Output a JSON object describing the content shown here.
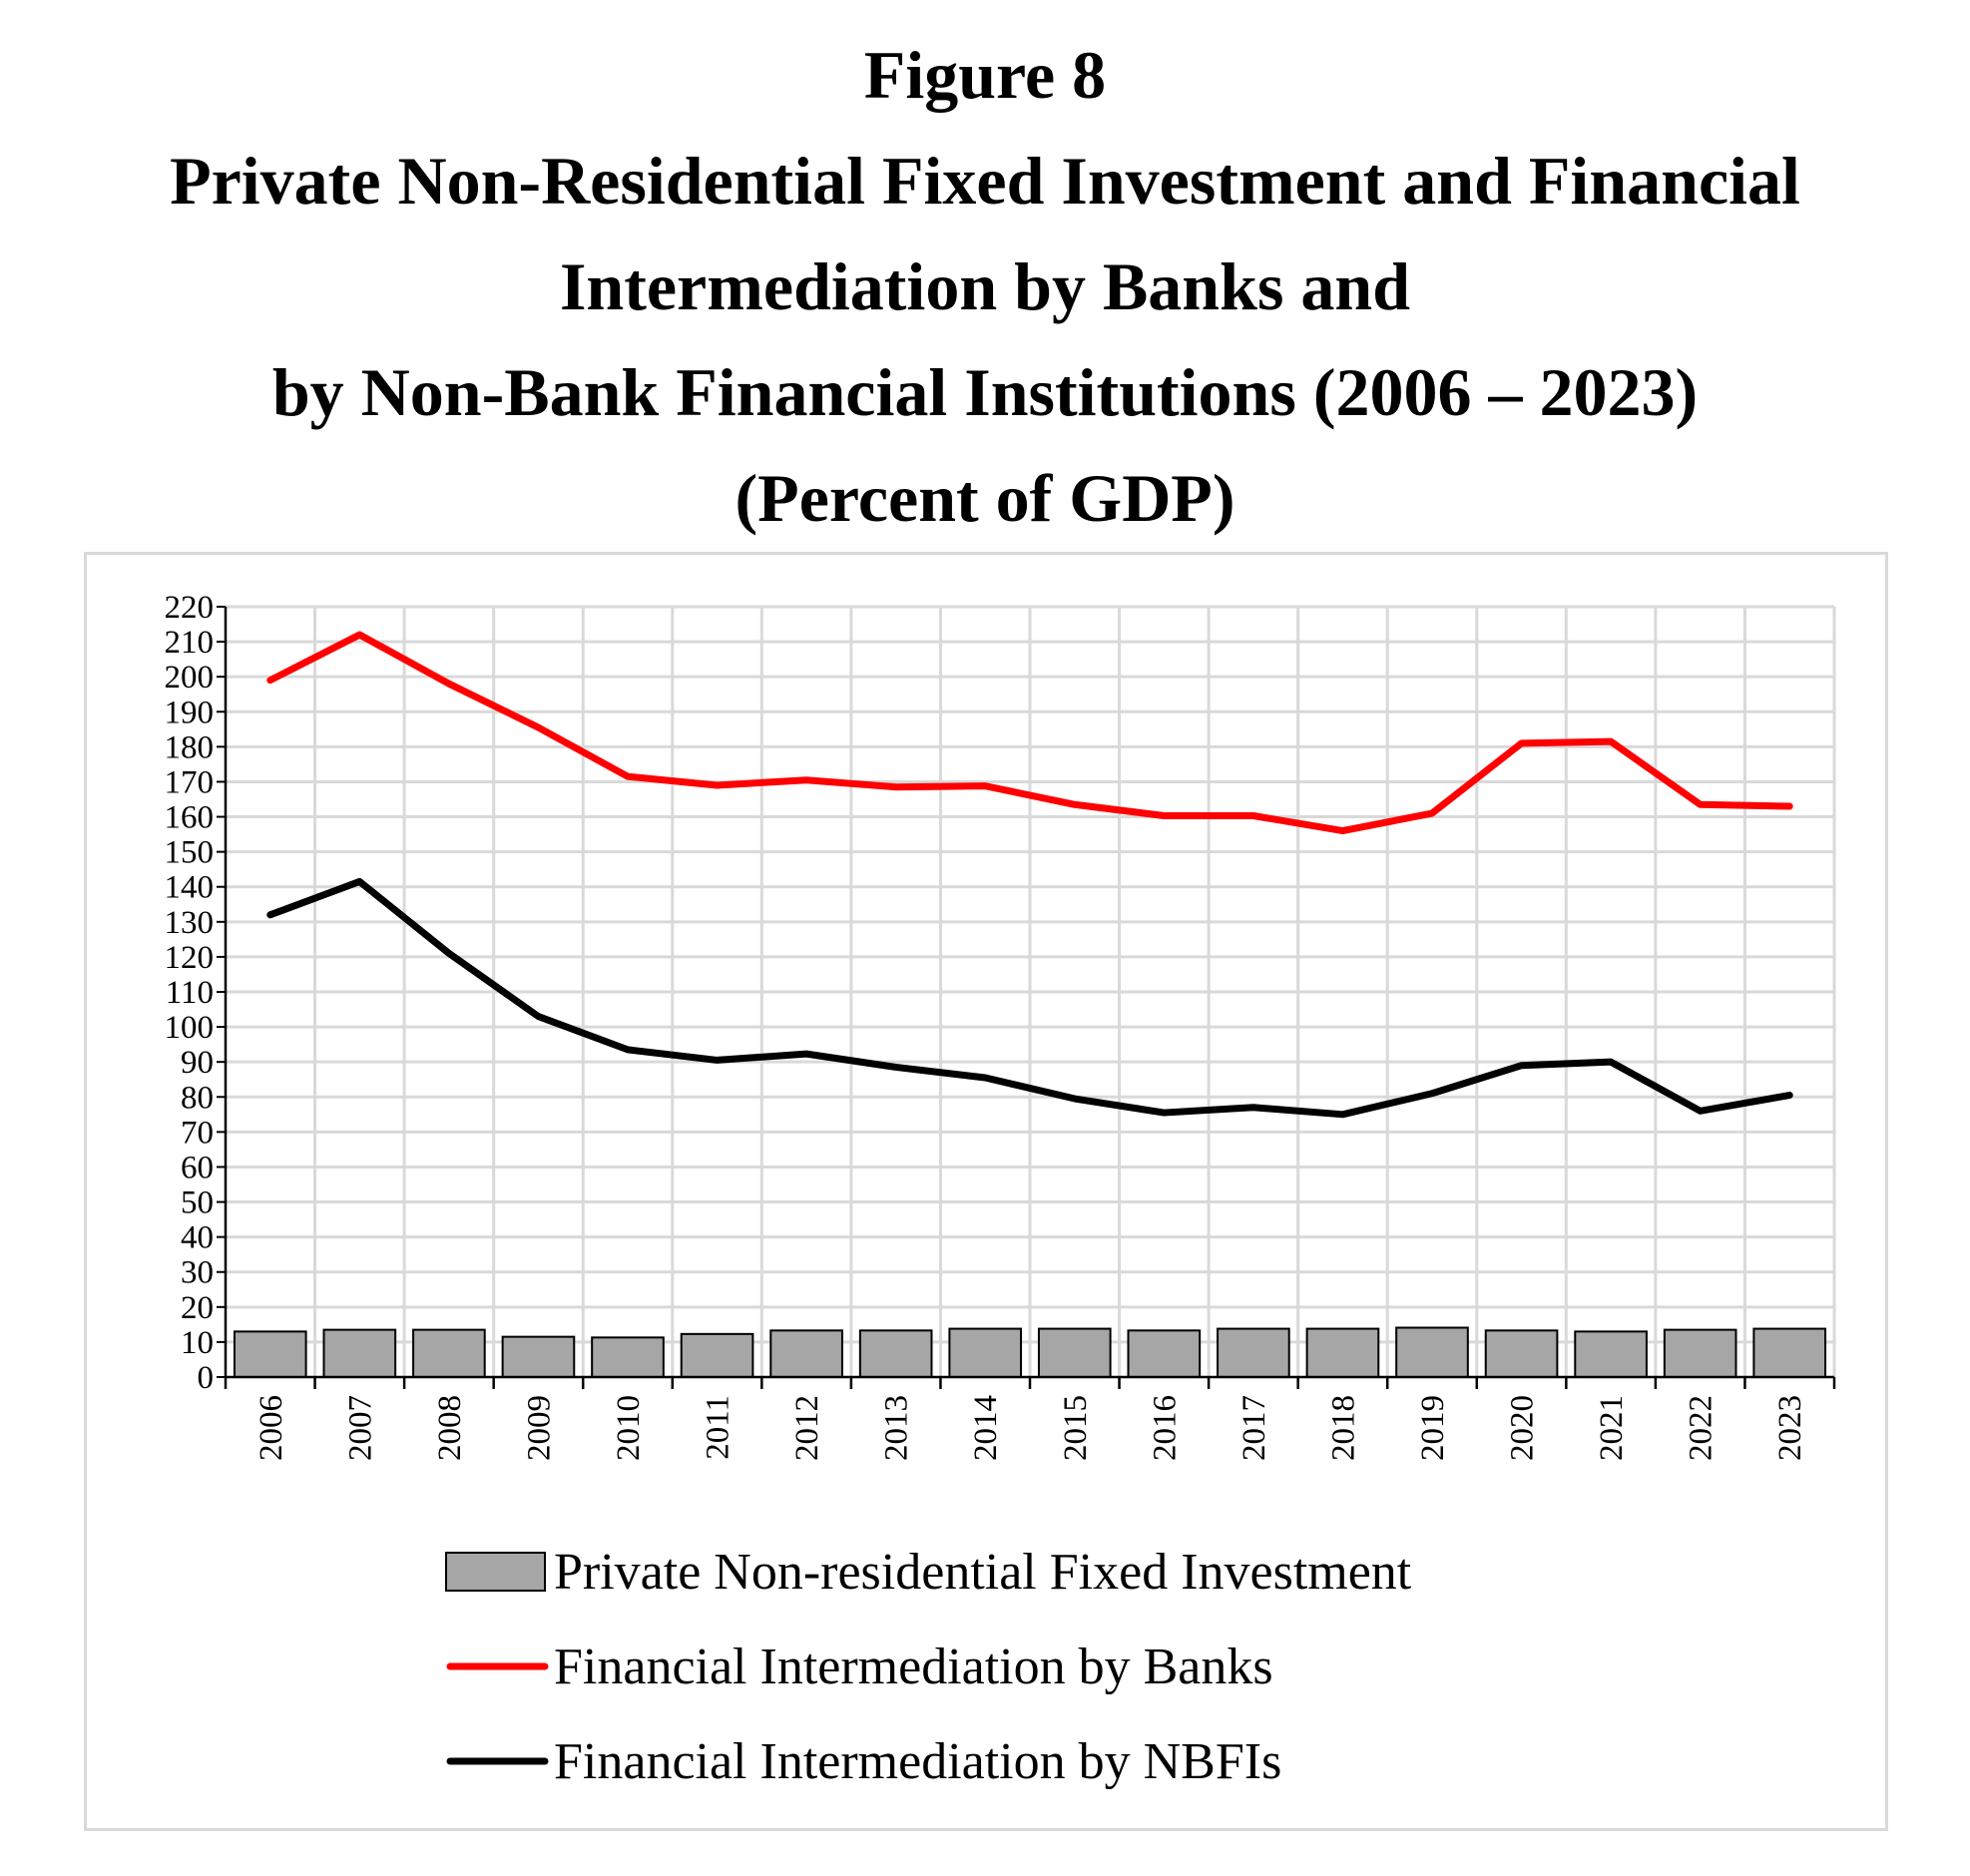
{
  "title_lines": [
    "Figure 8",
    "Private Non-Residential Fixed Investment and Financial",
    "Intermediation by Banks and",
    "by Non-Bank Financial Institutions (2006 – 2023)",
    "(Percent of GDP)"
  ],
  "colors": {
    "bars_fill": "#a6a6a6",
    "bars_stroke": "#000000",
    "banks_line": "#ff0000",
    "nbfis_line": "#000000",
    "grid": "#d9d9d9",
    "axis": "#000000"
  },
  "chart_data": {
    "type": "bar",
    "categories": [
      "2006",
      "2007",
      "2008",
      "2009",
      "2010",
      "2011",
      "2012",
      "2013",
      "2014",
      "2015",
      "2016",
      "2017",
      "2018",
      "2019",
      "2020",
      "2021",
      "2022",
      "2023"
    ],
    "series": [
      {
        "name": "Private Non-residential Fixed Investment",
        "type": "bar",
        "values": [
          13.0,
          13.5,
          13.5,
          11.5,
          11.3,
          12.3,
          13.3,
          13.3,
          13.8,
          13.8,
          13.3,
          13.8,
          13.8,
          14.1,
          13.3,
          13.0,
          13.5,
          13.8
        ]
      },
      {
        "name": "Financial Intermediation by Banks",
        "type": "line",
        "values": [
          199.0,
          212.0,
          198.0,
          185.5,
          171.5,
          169.0,
          170.5,
          168.5,
          168.8,
          163.5,
          160.3,
          160.3,
          156.0,
          161.0,
          181.0,
          181.5,
          163.5,
          163.0
        ]
      },
      {
        "name": "Financial Intermediation by NBFIs",
        "type": "line",
        "values": [
          132.0,
          141.5,
          121.0,
          103.0,
          93.5,
          90.5,
          92.3,
          88.5,
          85.5,
          79.5,
          75.5,
          77.0,
          75.0,
          81.0,
          89.0,
          90.0,
          76.0,
          80.5
        ]
      }
    ],
    "ylim": [
      0,
      220
    ],
    "yticks": [
      0,
      10,
      20,
      30,
      40,
      50,
      60,
      70,
      80,
      90,
      100,
      110,
      120,
      130,
      140,
      150,
      160,
      170,
      180,
      190,
      200,
      210,
      220
    ],
    "xlabel": "",
    "ylabel": "",
    "grid": true,
    "legend_position": "bottom"
  }
}
